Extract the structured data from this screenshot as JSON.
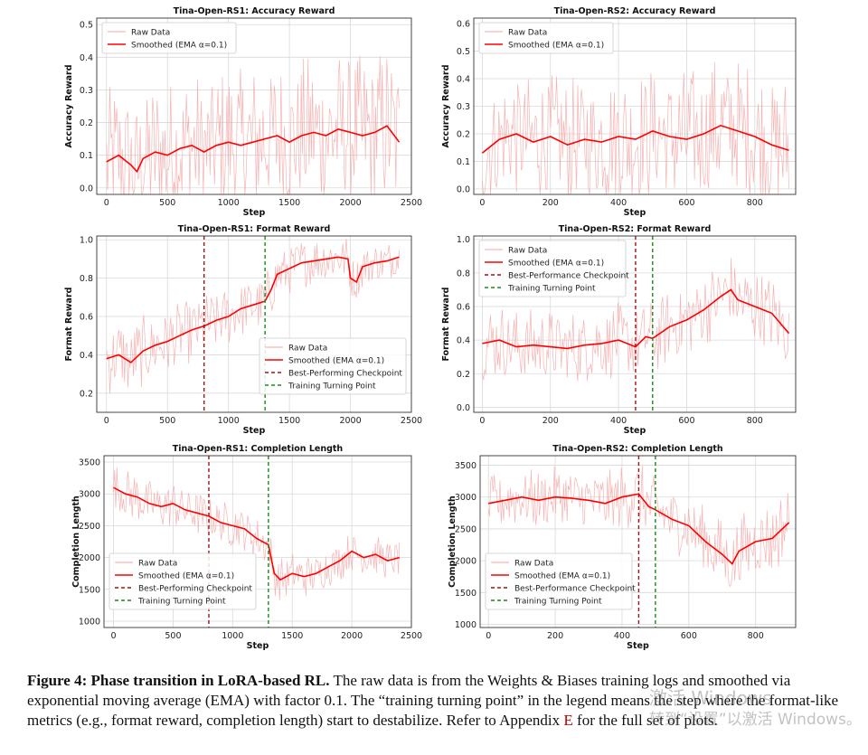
{
  "figure": {
    "panels": [
      {
        "id": "rs1-acc",
        "x_ticks": [
          0,
          500,
          1000,
          1500,
          2000,
          2500
        ],
        "y_ticks": [
          0.0,
          0.1,
          0.2,
          0.3,
          0.4,
          0.5
        ]
      },
      {
        "id": "rs2-acc",
        "x_ticks": [
          0,
          200,
          400,
          600,
          800
        ],
        "y_ticks": [
          0.0,
          0.1,
          0.2,
          0.3,
          0.4,
          0.5,
          0.6
        ]
      },
      {
        "id": "rs1-fmt",
        "x_ticks": [
          0,
          500,
          1000,
          1500,
          2000,
          2500
        ],
        "y_ticks": [
          0.2,
          0.4,
          0.6,
          0.8,
          1.0
        ]
      },
      {
        "id": "rs2-fmt",
        "x_ticks": [
          0,
          200,
          400,
          600,
          800
        ],
        "y_ticks": [
          0.0,
          0.2,
          0.4,
          0.6,
          0.8,
          1.0
        ]
      },
      {
        "id": "rs1-len",
        "x_ticks": [
          0,
          500,
          1000,
          1500,
          2000,
          2500
        ],
        "y_ticks": [
          1000,
          1500,
          2000,
          2500,
          3000,
          3500
        ]
      },
      {
        "id": "rs2-len",
        "x_ticks": [
          0,
          200,
          400,
          600,
          800
        ],
        "y_ticks": [
          1000,
          1500,
          2000,
          2500,
          3000,
          3500
        ]
      }
    ]
  },
  "chart_data": [
    {
      "type": "line",
      "title": "Tina-Open-RS1: Accuracy Reward",
      "xlabel": "Step",
      "ylabel": "Accuracy Reward",
      "xlim": [
        -80,
        2500
      ],
      "ylim": [
        -0.02,
        0.52
      ],
      "grid": true,
      "legend_position": "upper-left",
      "series": [
        {
          "name": "Raw Data",
          "color": "#f4a6a6"
        },
        {
          "name": "Smoothed (EMA α=0.1)",
          "color": "#ff0000",
          "x": [
            0,
            100,
            200,
            250,
            300,
            400,
            500,
            600,
            700,
            800,
            900,
            1000,
            1100,
            1200,
            1300,
            1400,
            1500,
            1600,
            1700,
            1800,
            1900,
            2000,
            2100,
            2200,
            2300,
            2400
          ],
          "y": [
            0.08,
            0.1,
            0.07,
            0.05,
            0.09,
            0.11,
            0.1,
            0.12,
            0.13,
            0.11,
            0.13,
            0.14,
            0.13,
            0.14,
            0.15,
            0.16,
            0.14,
            0.16,
            0.17,
            0.16,
            0.18,
            0.17,
            0.16,
            0.17,
            0.19,
            0.14
          ]
        }
      ],
      "raw_band": {
        "x": [
          0,
          2400
        ],
        "lower": [
          0.0,
          0.0
        ],
        "upper": [
          0.45,
          0.5
        ]
      },
      "markers": []
    },
    {
      "type": "line",
      "title": "Tina-Open-RS2: Accuracy Reward",
      "xlabel": "Step",
      "ylabel": "Accuracy Reward",
      "xlim": [
        -25,
        920
      ],
      "ylim": [
        -0.02,
        0.62
      ],
      "grid": true,
      "legend_position": "upper-left",
      "series": [
        {
          "name": "Raw Data",
          "color": "#f4a6a6"
        },
        {
          "name": "Smoothed (EMA α=0.1)",
          "color": "#ff0000",
          "x": [
            0,
            50,
            100,
            150,
            200,
            250,
            300,
            350,
            400,
            450,
            500,
            550,
            600,
            650,
            700,
            750,
            800,
            850,
            900
          ],
          "y": [
            0.13,
            0.18,
            0.2,
            0.17,
            0.19,
            0.16,
            0.18,
            0.17,
            0.19,
            0.18,
            0.21,
            0.19,
            0.18,
            0.2,
            0.23,
            0.21,
            0.19,
            0.16,
            0.14
          ]
        }
      ],
      "raw_band": {
        "x": [
          0,
          900
        ],
        "lower": [
          0.0,
          0.0
        ],
        "upper": [
          0.45,
          0.55
        ]
      },
      "markers": []
    },
    {
      "type": "line",
      "title": "Tina-Open-RS1: Format Reward",
      "xlabel": "Step",
      "ylabel": "Format Reward",
      "xlim": [
        -80,
        2500
      ],
      "ylim": [
        0.1,
        1.02
      ],
      "grid": true,
      "legend_position": "lower-right",
      "series": [
        {
          "name": "Raw Data",
          "color": "#f4a6a6"
        },
        {
          "name": "Smoothed (EMA α=0.1)",
          "color": "#ff0000",
          "x": [
            0,
            100,
            200,
            300,
            400,
            500,
            600,
            700,
            800,
            900,
            1000,
            1100,
            1200,
            1300,
            1350,
            1400,
            1500,
            1600,
            1700,
            1800,
            1900,
            1980,
            2000,
            2050,
            2100,
            2200,
            2300,
            2400
          ],
          "y": [
            0.38,
            0.4,
            0.36,
            0.42,
            0.45,
            0.47,
            0.5,
            0.53,
            0.55,
            0.58,
            0.6,
            0.64,
            0.66,
            0.68,
            0.74,
            0.82,
            0.85,
            0.88,
            0.89,
            0.9,
            0.91,
            0.9,
            0.8,
            0.78,
            0.86,
            0.88,
            0.89,
            0.91
          ]
        }
      ],
      "raw_band": {
        "x": [
          0,
          2400
        ],
        "lower": [
          0.15,
          0.8
        ],
        "upper": [
          0.55,
          1.0
        ]
      },
      "markers": [
        {
          "name": "Best-Performing Checkpoint",
          "x": 800,
          "color": "#aa1111"
        },
        {
          "name": "Training Turning Point",
          "x": 1300,
          "color": "#1a8a1a"
        }
      ]
    },
    {
      "type": "line",
      "title": "Tina-Open-RS2: Format Reward",
      "xlabel": "Step",
      "ylabel": "Format Reward",
      "xlim": [
        -25,
        920
      ],
      "ylim": [
        -0.03,
        1.02
      ],
      "grid": true,
      "legend_position": "upper-left",
      "series": [
        {
          "name": "Raw Data",
          "color": "#f4a6a6"
        },
        {
          "name": "Smoothed (EMA α=0.1)",
          "color": "#ff0000",
          "x": [
            0,
            50,
            100,
            150,
            200,
            250,
            300,
            350,
            400,
            450,
            480,
            500,
            550,
            600,
            650,
            700,
            730,
            750,
            800,
            850,
            900
          ],
          "y": [
            0.38,
            0.4,
            0.36,
            0.37,
            0.36,
            0.35,
            0.37,
            0.38,
            0.4,
            0.36,
            0.42,
            0.41,
            0.48,
            0.52,
            0.58,
            0.66,
            0.7,
            0.64,
            0.6,
            0.56,
            0.44
          ]
        }
      ],
      "raw_band": {
        "x": [
          0,
          900
        ],
        "lower": [
          0.2,
          0.3
        ],
        "upper": [
          0.65,
          0.75
        ]
      },
      "markers": [
        {
          "name": "Best-Performance Checkpoint",
          "x": 450,
          "color": "#aa1111"
        },
        {
          "name": "Training Turning Point",
          "x": 500,
          "color": "#1a8a1a"
        }
      ]
    },
    {
      "type": "line",
      "title": "Tina-Open-RS1: Completion Length",
      "xlabel": "Step",
      "ylabel": "Completion Length",
      "xlim": [
        -80,
        2500
      ],
      "ylim": [
        900,
        3600
      ],
      "grid": true,
      "legend_position": "lower-left",
      "series": [
        {
          "name": "Raw Data",
          "color": "#f4a6a6"
        },
        {
          "name": "Smoothed (EMA α=0.1)",
          "color": "#ff0000",
          "x": [
            0,
            100,
            200,
            300,
            400,
            500,
            600,
            700,
            800,
            900,
            1000,
            1100,
            1200,
            1300,
            1350,
            1400,
            1500,
            1600,
            1700,
            1800,
            1900,
            2000,
            2100,
            2200,
            2300,
            2400
          ],
          "y": [
            3100,
            3000,
            2950,
            2850,
            2800,
            2850,
            2750,
            2700,
            2650,
            2550,
            2500,
            2450,
            2300,
            2200,
            1750,
            1650,
            1750,
            1700,
            1750,
            1850,
            1950,
            2100,
            2000,
            2050,
            1950,
            2000
          ]
        }
      ],
      "raw_band": {
        "x": [
          0,
          2400
        ],
        "lower": [
          2600,
          1700
        ],
        "upper": [
          3400,
          2300
        ]
      },
      "markers": [
        {
          "name": "Best-Performing Checkpoint",
          "x": 800,
          "color": "#aa1111"
        },
        {
          "name": "Training Turning Point",
          "x": 1300,
          "color": "#1a8a1a"
        }
      ]
    },
    {
      "type": "line",
      "title": "Tina-Open-RS2: Completion Length",
      "xlabel": "Step",
      "ylabel": "Completion Length",
      "xlim": [
        -25,
        920
      ],
      "ylim": [
        950,
        3650
      ],
      "grid": true,
      "legend_position": "lower-left",
      "series": [
        {
          "name": "Raw Data",
          "color": "#f4a6a6"
        },
        {
          "name": "Smoothed (EMA α=0.1)",
          "color": "#ff0000",
          "x": [
            0,
            50,
            100,
            150,
            200,
            250,
            300,
            350,
            400,
            450,
            480,
            500,
            550,
            600,
            650,
            700,
            730,
            750,
            800,
            850,
            900
          ],
          "y": [
            2900,
            2950,
            3000,
            2950,
            3000,
            2980,
            2950,
            2900,
            3000,
            3050,
            2850,
            2800,
            2650,
            2550,
            2300,
            2100,
            1950,
            2150,
            2300,
            2350,
            2600
          ]
        }
      ],
      "raw_band": {
        "x": [
          0,
          900
        ],
        "lower": [
          2500,
          1800
        ],
        "upper": [
          3400,
          3000
        ]
      },
      "markers": [
        {
          "name": "Best-Performance Checkpoint",
          "x": 450,
          "color": "#aa1111"
        },
        {
          "name": "Training Turning Point",
          "x": 500,
          "color": "#1a8a1a"
        }
      ]
    }
  ],
  "caption": {
    "label": "Figure 4: Phase transition in LoRA-based RL.",
    "text_before_ref": "The raw data is from the Weights & Biases training logs and smoothed via exponential moving average (EMA) with factor 0.1. The “training turning point” in the legend means the step where the format-like metrics (e.g., format reward, completion length) start to destabilize. Refer to Appendix",
    "ref": "E",
    "text_after_ref": "for the full set of plots."
  },
  "watermark": {
    "line1": "激活 Windows",
    "line2": "转到“设置”以激活 Windows。"
  }
}
